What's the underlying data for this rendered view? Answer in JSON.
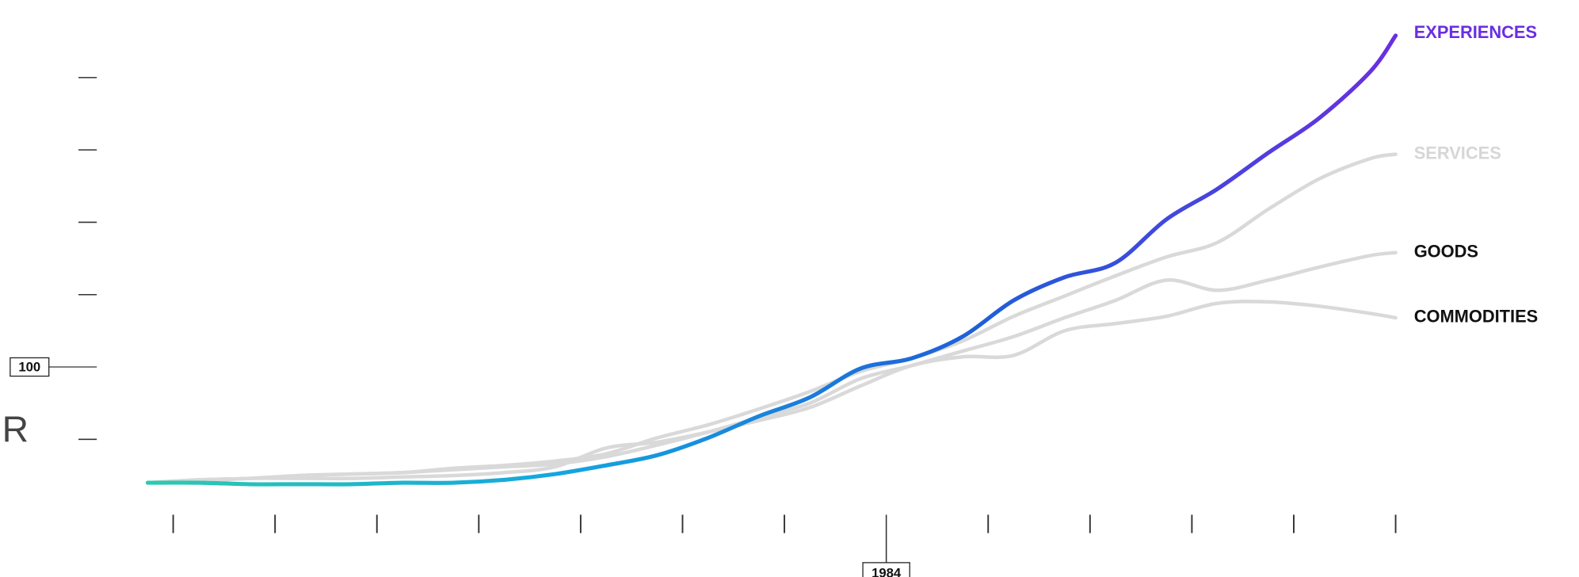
{
  "chart_data": {
    "type": "line",
    "side_label": "R",
    "x": [
      1955,
      1957,
      1959,
      1961,
      1963,
      1965,
      1967,
      1969,
      1971,
      1973,
      1975,
      1977,
      1979,
      1981,
      1983,
      1985,
      1987,
      1989,
      1991,
      1993,
      1995,
      1997,
      1999,
      2001,
      2003,
      2004
    ],
    "xlim": [
      1950,
      2010
    ],
    "xticks": [
      1984
    ],
    "minor_xticks": [
      1956,
      1960,
      1964,
      1968,
      1972,
      1976,
      1980,
      1988,
      1992,
      1996,
      2000,
      2004
    ],
    "ylim": [
      0,
      350
    ],
    "yticks": [
      100
    ],
    "minor_yticks": [
      50,
      150,
      200,
      250,
      300
    ],
    "series": [
      {
        "name": "SERVICES",
        "color": "#d9d9d9",
        "label_color": "#d6d6d6",
        "values": [
          20,
          22,
          23,
          25,
          26,
          27,
          30,
          32,
          35,
          40,
          51,
          60,
          71,
          83,
          97,
          106,
          118,
          135,
          149,
          163,
          176,
          186,
          209,
          230,
          244,
          247
        ]
      },
      {
        "name": "GOODS",
        "color": "#d9d9d9",
        "label_color": "#111111",
        "values": [
          20,
          22,
          23,
          25,
          26,
          27,
          29,
          31,
          33,
          38,
          46,
          55,
          65,
          75,
          92,
          101,
          111,
          121,
          134,
          146,
          160,
          153,
          160,
          169,
          177,
          179
        ]
      },
      {
        "name": "COMMODITIES",
        "color": "#d9d9d9",
        "label_color": "#111111",
        "values": [
          20,
          21,
          23,
          23,
          23,
          24,
          25,
          27,
          31,
          44,
          48,
          55,
          63,
          72,
          87,
          101,
          107,
          108,
          125,
          130,
          135,
          144,
          145,
          142,
          137,
          134
        ]
      },
      {
        "name": "EXPERIENCES",
        "gradient": [
          "#2ec9b0",
          "#14a6e0",
          "#1f5fd8",
          "#6a2ee2"
        ],
        "label_color": "#6a2ee2",
        "values": [
          20,
          20,
          19,
          19,
          19,
          20,
          20,
          22,
          26,
          32,
          39,
          51,
          66,
          79,
          99,
          106,
          121,
          146,
          162,
          172,
          202,
          223,
          248,
          272,
          304,
          329
        ]
      }
    ]
  }
}
